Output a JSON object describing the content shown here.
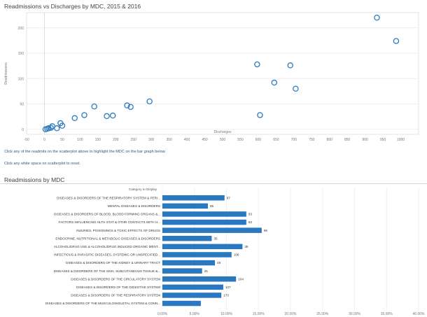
{
  "scatter_title": "Readmissions vs Discharges by MDC, 2015 & 2016",
  "hint_click": "Click any of the readmits on the scatterplot above to highlight the MDC on the bar graph below.",
  "hint_reset": "Click any white space on scatterplot to reset.",
  "bar_title": "Readmissions by MDC",
  "chart_data": [
    {
      "type": "scatter",
      "title": "Readmissions vs Discharges by MDC, 2015 & 2016",
      "xlabel": "Discharges",
      "ylabel": "Readmissions",
      "xlim": [
        -50,
        1050
      ],
      "ylim": [
        -10,
        230
      ],
      "xticks": [
        -50,
        0,
        50,
        100,
        150,
        200,
        250,
        300,
        350,
        400,
        450,
        500,
        550,
        600,
        650,
        700,
        750,
        800,
        850,
        900,
        950,
        1000
      ],
      "yticks": [
        0,
        50,
        100,
        150,
        200
      ],
      "marker_color": "#2f7bbf",
      "points": [
        {
          "x": 3,
          "y": 0
        },
        {
          "x": 8,
          "y": 1
        },
        {
          "x": 12,
          "y": 2
        },
        {
          "x": 18,
          "y": 3
        },
        {
          "x": 22,
          "y": 6
        },
        {
          "x": 35,
          "y": 2
        },
        {
          "x": 45,
          "y": 12
        },
        {
          "x": 50,
          "y": 7
        },
        {
          "x": 85,
          "y": 22
        },
        {
          "x": 112,
          "y": 28
        },
        {
          "x": 140,
          "y": 45
        },
        {
          "x": 175,
          "y": 26
        },
        {
          "x": 192,
          "y": 27
        },
        {
          "x": 232,
          "y": 47
        },
        {
          "x": 242,
          "y": 44
        },
        {
          "x": 295,
          "y": 55
        },
        {
          "x": 597,
          "y": 128
        },
        {
          "x": 605,
          "y": 28
        },
        {
          "x": 645,
          "y": 92
        },
        {
          "x": 690,
          "y": 126
        },
        {
          "x": 705,
          "y": 80
        },
        {
          "x": 933,
          "y": 220
        },
        {
          "x": 987,
          "y": 174
        }
      ]
    },
    {
      "type": "bar",
      "orientation": "horizontal",
      "title": "Readmissions by MDC",
      "category_header": "Category to Display",
      "bar_color": "#2a78bf",
      "xlim": [
        0,
        0.4
      ],
      "xticks": [
        "0.00%",
        "5.00%",
        "10.00%",
        "15.00%",
        "20.00%",
        "25.00%",
        "30.00%",
        "35.00%",
        "40.00%"
      ],
      "categories": [
        "DISEASES & DISORDERS OF THE RESPIRATORY SYSTEM & PERI...",
        "MENTAL DISEASES & DISORDERS",
        "DISEASES & DISORDERS OF BLOOD, BLOOD FORMING ORGANS &...",
        "FACTORS INFLUENCING HLTH STAT & OTHR CONTACTS WITH H...",
        "INJURIES, POISONINGS & TOXIC EFFECTS OF DRUGS",
        "ENDOCRINE, NUTRITIONAL & METABOLIC DISEASES & DISORDERS",
        "ALCOHOL/DRUG USE & ALCOHOL/DRUG INDUCED ORGANIC MENT...",
        "INFECTIOUS & PARASITIC DISEASES, SYSTEMIC OR UNSPECIFIED...",
        "DISEASES & DISORDERS OF THE KIDNEY & URINARY TRACT",
        "DISEASES & DISORDERS OF THE SKIN, SUBCUTANEOUS TISSUE &...",
        "DISEASES & DISORDERS OF THE CIRCULATORY SYSTEM",
        "DISEASES & DISORDERS OF THE DIGESTIVE SYSTEM",
        "DISEASES & DISORDERS OF THE RESPIRATORY SYSTEM",
        "DISEASES & DISORDERS OF THE MUSCULOSKELETAL SYSTEM & CONN..."
      ],
      "values": [
        0.097,
        0.071,
        0.131,
        0.131,
        0.155,
        0.077,
        0.125,
        0.108,
        0.082,
        0.062,
        0.115,
        0.095,
        0.092,
        0.06
      ],
      "value_labels": [
        "97",
        "55",
        "53",
        "53",
        "96",
        "35",
        "39",
        "108",
        "49",
        "25",
        "104",
        "127",
        "173",
        ""
      ]
    }
  ]
}
